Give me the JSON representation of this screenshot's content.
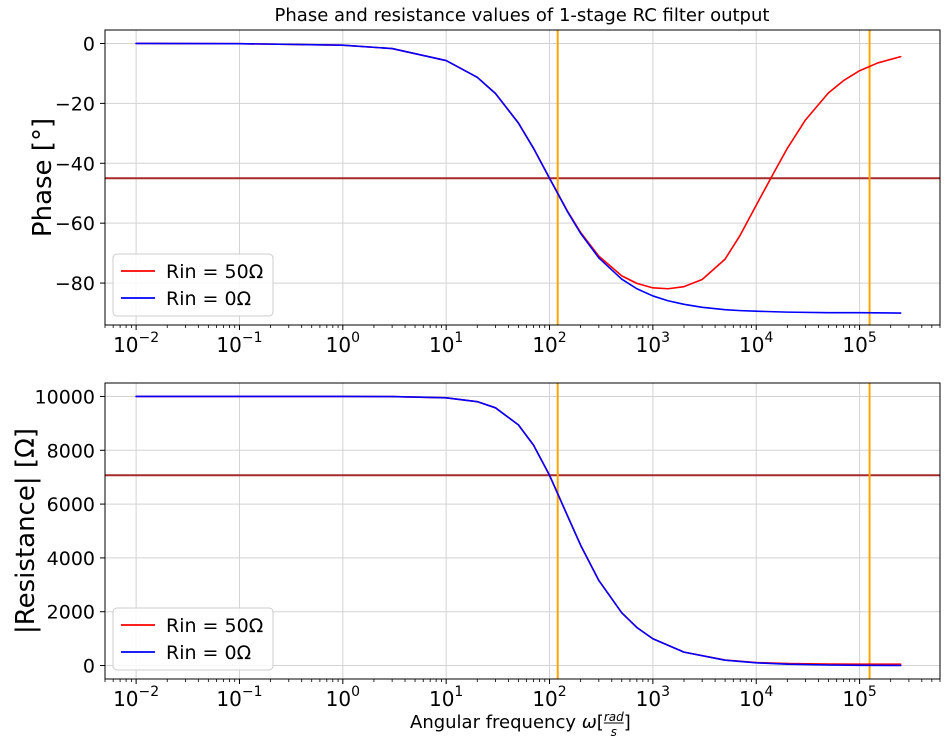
{
  "figure": {
    "title": "Phase and resistance values of 1-stage RC filter output",
    "xlabel": "Angular frequency ω[rad/s]",
    "xlabel_parts": {
      "prefix": "Angular frequency ",
      "symbol": "ω",
      "numerator": "rad",
      "denominator": "s"
    }
  },
  "colors": {
    "series_rin50": "#ff0000",
    "series_rin0": "#0000ff",
    "reference_line": "#a52a2a",
    "vertical_markers": "#ffa500",
    "grid": "#d3d3d3"
  },
  "chart_data": [
    {
      "type": "line",
      "title": "Phase and resistance values of 1-stage RC filter output",
      "ylabel": "Phase [°]",
      "xscale": "log",
      "xlim": [
        0.005,
        600000
      ],
      "ylim": [
        -94,
        4.5
      ],
      "grid": true,
      "legend_position": "lower-left",
      "xtick_labels": [
        {
          "base": "10",
          "exp": "−2",
          "value": 0.01
        },
        {
          "base": "10",
          "exp": "−1",
          "value": 0.1
        },
        {
          "base": "10",
          "exp": "0",
          "value": 1
        },
        {
          "base": "10",
          "exp": "1",
          "value": 10
        },
        {
          "base": "10",
          "exp": "2",
          "value": 100
        },
        {
          "base": "10",
          "exp": "3",
          "value": 1000
        },
        {
          "base": "10",
          "exp": "4",
          "value": 10000
        },
        {
          "base": "10",
          "exp": "5",
          "value": 100000
        }
      ],
      "yticks": [
        {
          "label": "0",
          "value": 0
        },
        {
          "label": "−20",
          "value": -20
        },
        {
          "label": "−40",
          "value": -40
        },
        {
          "label": "−60",
          "value": -60
        },
        {
          "label": "−80",
          "value": -80
        }
      ],
      "series": [
        {
          "name": "Rin = 50Ω",
          "color": "#ff0000",
          "x": [
            0.01,
            0.1,
            1,
            3,
            10,
            20,
            30,
            50,
            70,
            100,
            150,
            200,
            300,
            500,
            700,
            1000,
            1400,
            2000,
            3000,
            5000,
            7000,
            10000,
            15000,
            20000,
            30000,
            50000,
            70000,
            100000,
            150000,
            250000
          ],
          "y": [
            0,
            -0.06,
            -0.57,
            -1.7,
            -5.7,
            -11.3,
            -16.7,
            -26.5,
            -35.0,
            -45.0,
            -56.1,
            -63.1,
            -71.0,
            -77.6,
            -80.1,
            -81.6,
            -81.9,
            -81.2,
            -78.8,
            -72.0,
            -64.0,
            -54.0,
            -42.8,
            -35.0,
            -25.5,
            -16.5,
            -12.4,
            -9.1,
            -6.5,
            -4.4
          ]
        },
        {
          "name": "Rin = 0Ω",
          "color": "#0000ff",
          "x": [
            0.01,
            0.1,
            1,
            3,
            10,
            20,
            30,
            50,
            70,
            100,
            150,
            200,
            300,
            500,
            700,
            1000,
            1400,
            2000,
            3000,
            5000,
            7000,
            10000,
            20000,
            50000,
            100000,
            250000
          ],
          "y": [
            0,
            -0.06,
            -0.57,
            -1.7,
            -5.7,
            -11.3,
            -16.7,
            -26.6,
            -35.0,
            -45.0,
            -56.3,
            -63.4,
            -71.6,
            -78.7,
            -81.9,
            -84.3,
            -85.9,
            -87.1,
            -88.1,
            -88.9,
            -89.2,
            -89.4,
            -89.7,
            -89.9,
            -89.9,
            -90.0
          ]
        }
      ],
      "hlines": [
        {
          "y": -45,
          "color": "#a52a2a"
        }
      ],
      "vlines": [
        {
          "x": 120,
          "color": "#ffa500"
        },
        {
          "x": 125000,
          "color": "#ffa500"
        }
      ]
    },
    {
      "type": "line",
      "ylabel": "|Resistance| [Ω]",
      "xscale": "log",
      "xlim": [
        0.005,
        600000
      ],
      "ylim": [
        -500,
        10500
      ],
      "grid": true,
      "legend_position": "lower-left",
      "xtick_labels": [
        {
          "base": "10",
          "exp": "−2",
          "value": 0.01
        },
        {
          "base": "10",
          "exp": "−1",
          "value": 0.1
        },
        {
          "base": "10",
          "exp": "0",
          "value": 1
        },
        {
          "base": "10",
          "exp": "1",
          "value": 10
        },
        {
          "base": "10",
          "exp": "2",
          "value": 100
        },
        {
          "base": "10",
          "exp": "3",
          "value": 1000
        },
        {
          "base": "10",
          "exp": "4",
          "value": 10000
        },
        {
          "base": "10",
          "exp": "5",
          "value": 100000
        }
      ],
      "yticks": [
        {
          "label": "0",
          "value": 0
        },
        {
          "label": "2000",
          "value": 2000
        },
        {
          "label": "4000",
          "value": 4000
        },
        {
          "label": "6000",
          "value": 6000
        },
        {
          "label": "8000",
          "value": 8000
        },
        {
          "label": "10000",
          "value": 10000
        }
      ],
      "series": [
        {
          "name": "Rin = 50Ω",
          "color": "#ff0000",
          "x": [
            0.01,
            0.1,
            1,
            3,
            10,
            20,
            30,
            50,
            70,
            100,
            150,
            200,
            300,
            500,
            700,
            1000,
            2000,
            5000,
            10000,
            20000,
            50000,
            100000,
            250000
          ],
          "y": [
            10000,
            10000,
            10000,
            9996,
            9950,
            9806,
            9578,
            8944,
            8192,
            7071,
            5547,
            4472,
            3162,
            1961,
            1414,
            995,
            499,
            204,
            112,
            74,
            56,
            52,
            50
          ]
        },
        {
          "name": "Rin = 0Ω",
          "color": "#0000ff",
          "x": [
            0.01,
            0.1,
            1,
            3,
            10,
            20,
            30,
            50,
            70,
            100,
            150,
            200,
            300,
            500,
            700,
            1000,
            2000,
            5000,
            10000,
            20000,
            50000,
            100000,
            250000
          ],
          "y": [
            10000,
            10000,
            10000,
            9996,
            9950,
            9806,
            9578,
            8944,
            8192,
            7071,
            5547,
            4472,
            3162,
            1961,
            1414,
            995,
            499,
            200,
            100,
            50,
            20,
            10,
            4
          ]
        }
      ],
      "hlines": [
        {
          "y": 7071,
          "color": "#a52a2a"
        }
      ],
      "vlines": [
        {
          "x": 120,
          "color": "#ffa500"
        },
        {
          "x": 125000,
          "color": "#ffa500"
        }
      ]
    }
  ]
}
